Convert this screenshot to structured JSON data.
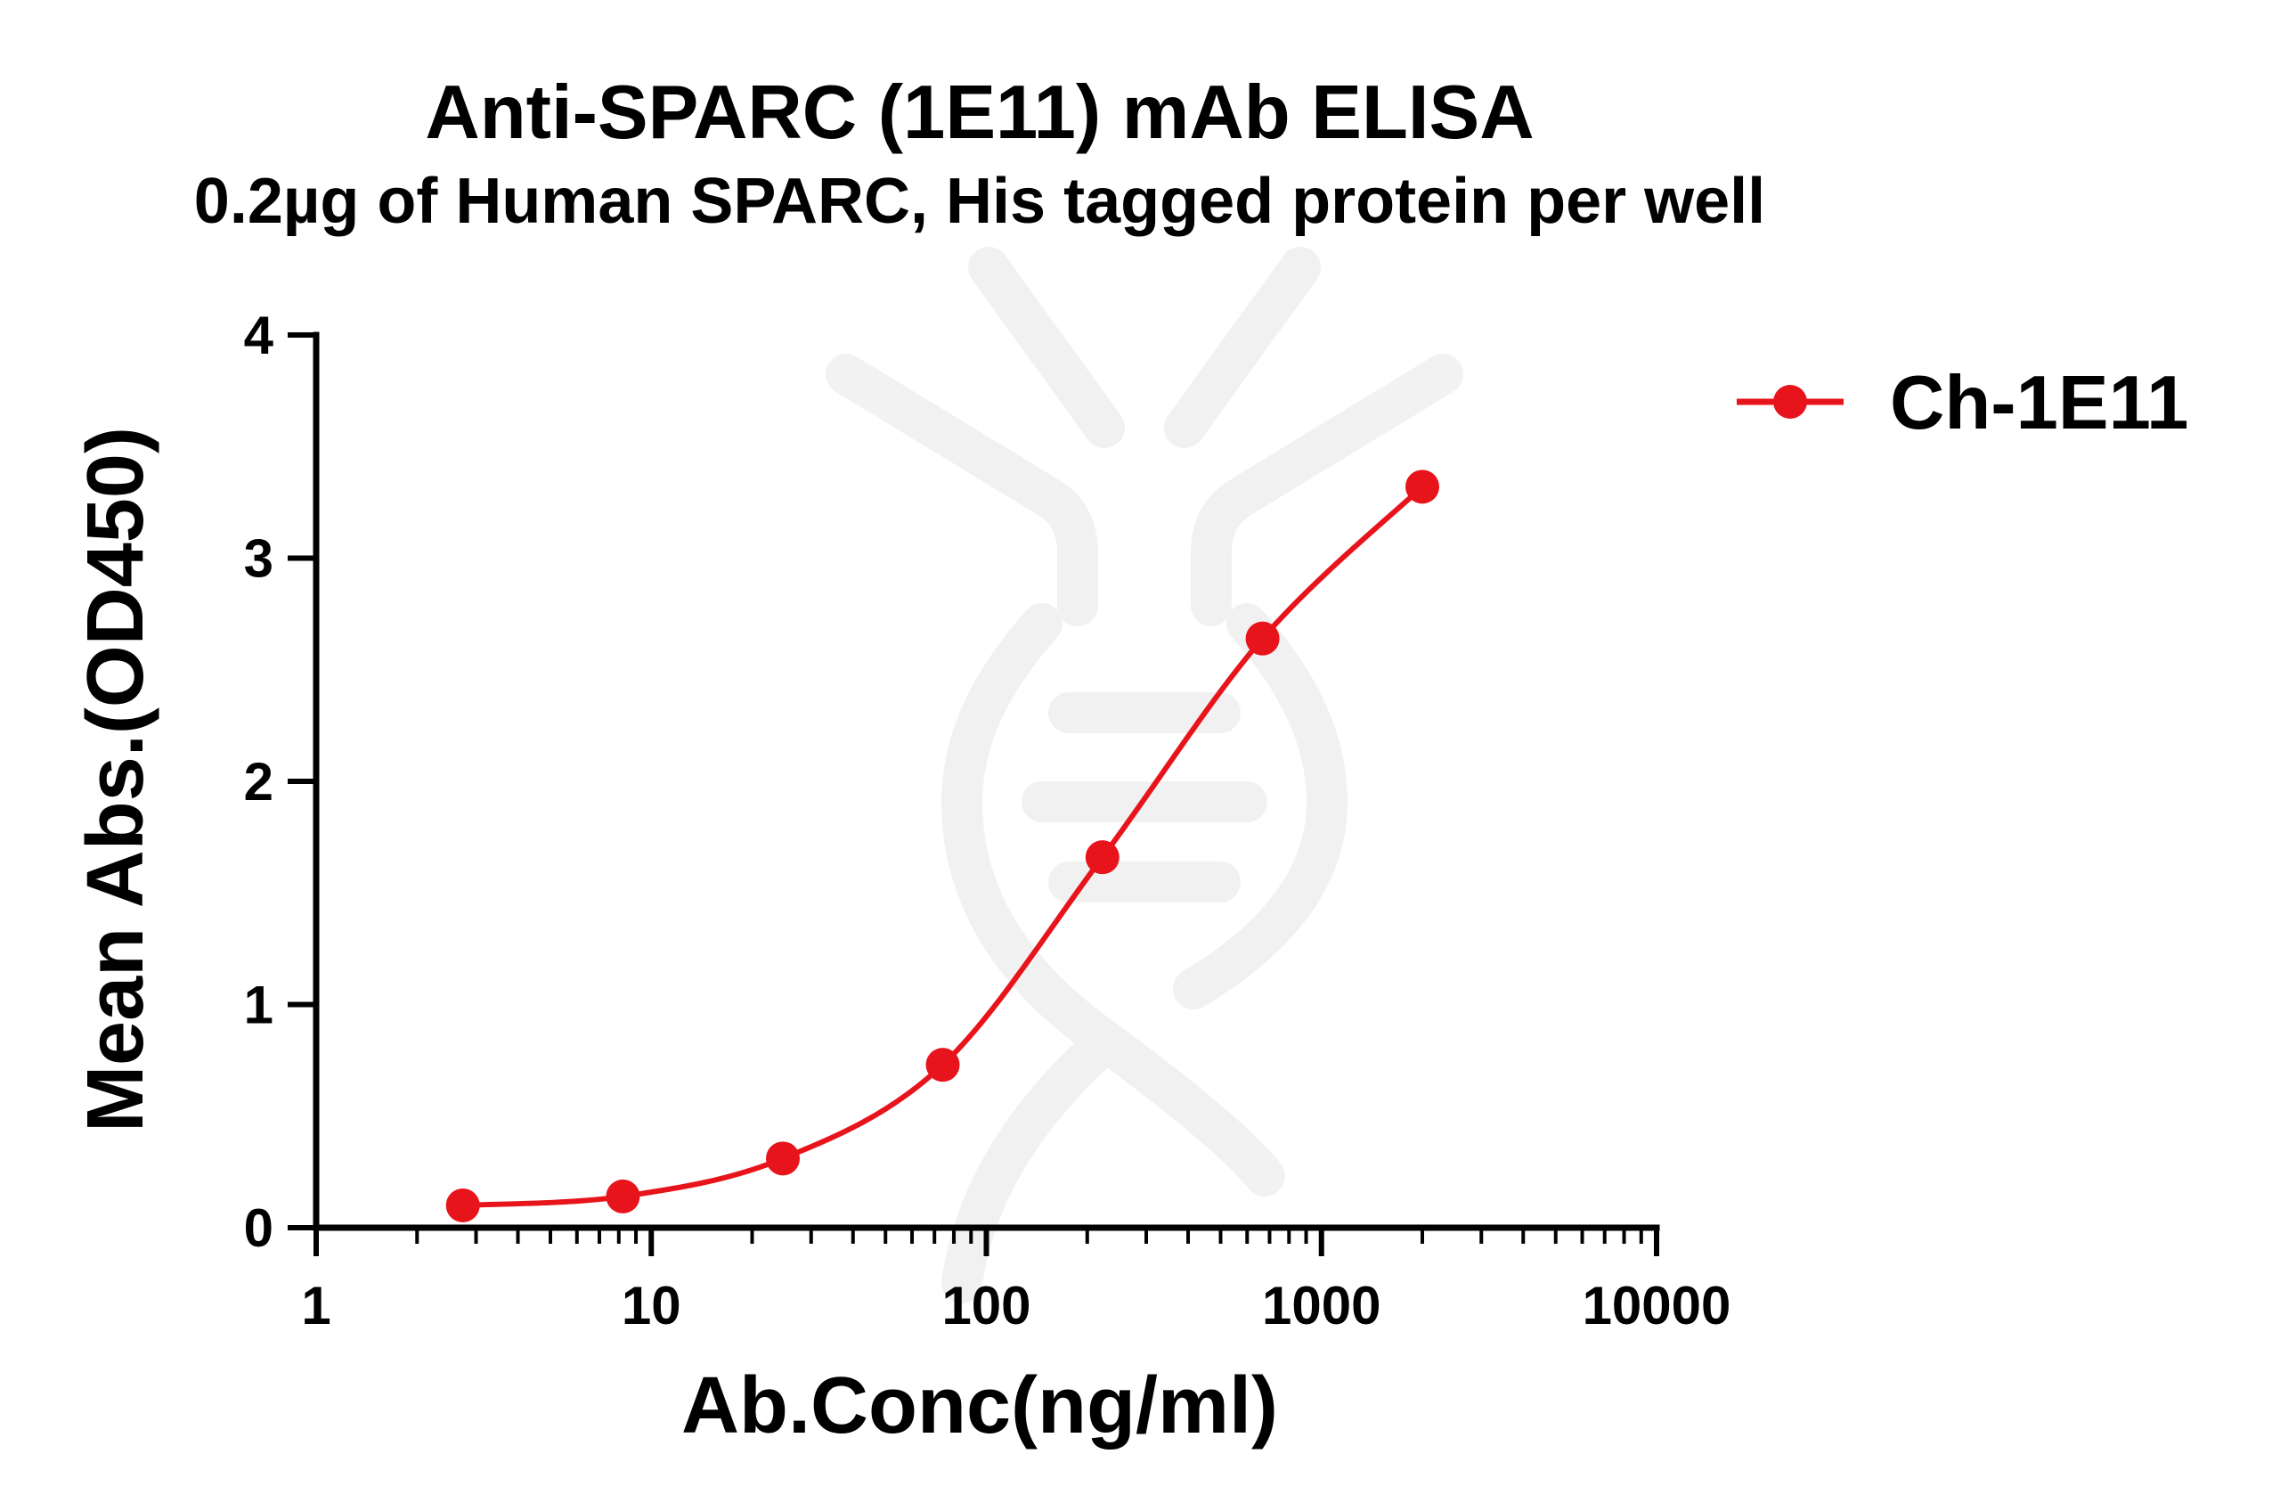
{
  "chart_data": {
    "type": "line",
    "title": "Anti-SPARC (1E11) mAb ELISA",
    "subtitle": "0.2µg of Human SPARC, His tagged protein per well",
    "xlabel": "Ab.Conc(ng/ml)",
    "ylabel": "Mean Abs.(OD450)",
    "x_scale": "log",
    "xlim": [
      1,
      10000
    ],
    "ylim": [
      0,
      4
    ],
    "x_ticks": [
      1,
      10,
      100,
      1000,
      10000
    ],
    "x_tick_labels": [
      "1",
      "10",
      "100",
      "1000",
      "10000"
    ],
    "y_ticks": [
      0,
      1,
      2,
      3,
      4
    ],
    "y_tick_labels": [
      "0",
      "1",
      "2",
      "3",
      "4"
    ],
    "grid": false,
    "legend_position": "top-right",
    "series": [
      {
        "name": "Ch-1E11",
        "color": "#e8141b",
        "x": [
          2.74,
          8.23,
          24.7,
          74.1,
          222,
          667,
          2000
        ],
        "y": [
          0.1,
          0.14,
          0.31,
          0.73,
          1.66,
          2.64,
          3.32
        ]
      }
    ]
  }
}
